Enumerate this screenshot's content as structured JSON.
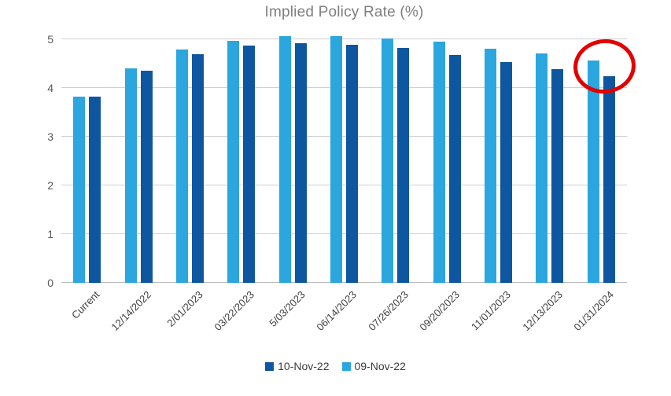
{
  "chart_data": {
    "type": "bar",
    "title": "Implied Policy Rate (%)",
    "categories": [
      "Current",
      "12/14/2022",
      "2/01/2023",
      "03/22/2023",
      "5/03/2023",
      "06/14/2023",
      "07/26/2023",
      "09/20/2023",
      "11/01/2023",
      "12/13/2023",
      "01/31/2024"
    ],
    "series": [
      {
        "name": "10-Nov-22",
        "color": "#0e57a0",
        "plot_order": 1,
        "values": [
          3.83,
          4.35,
          4.7,
          4.87,
          4.92,
          4.89,
          4.82,
          4.68,
          4.53,
          4.39,
          4.25
        ]
      },
      {
        "name": "09-Nov-22",
        "color": "#2ba6df",
        "plot_order": 0,
        "values": [
          3.83,
          4.4,
          4.79,
          4.96,
          5.06,
          5.07,
          5.02,
          4.95,
          4.81,
          4.71,
          4.57
        ]
      }
    ],
    "ylabel": "",
    "xlabel": "",
    "ylim": [
      0,
      5
    ],
    "yticks": [
      0,
      1,
      2,
      3,
      4,
      5
    ],
    "grid": "horizontal",
    "legend_position": "bottom",
    "annotation": {
      "shape": "ellipse",
      "color": "#e30000",
      "target_category": "01/31/2024",
      "meaning": "red circle highlighting the last pair of bars"
    }
  }
}
